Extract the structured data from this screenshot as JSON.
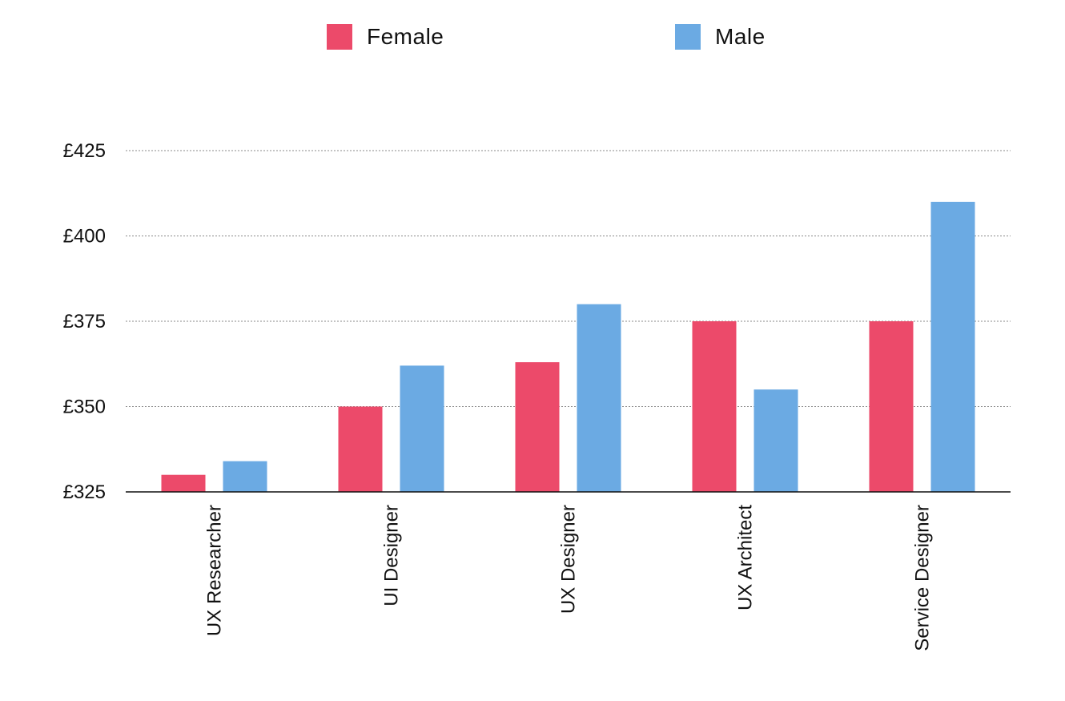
{
  "chart_data": {
    "type": "bar",
    "categories": [
      "UX Researcher",
      "UI Designer",
      "UX Designer",
      "UX Architect",
      "Service Designer"
    ],
    "series": [
      {
        "name": "Female",
        "color": "#EC4A6A",
        "values": [
          330,
          350,
          363,
          375,
          375
        ]
      },
      {
        "name": "Male",
        "color": "#6BAAE3",
        "values": [
          334,
          362,
          380,
          355,
          410
        ]
      }
    ],
    "title": "",
    "xlabel": "",
    "ylabel": "",
    "ylim": [
      325,
      425
    ],
    "yticks": [
      325,
      350,
      375,
      400,
      425
    ],
    "ytick_labels": [
      "£325",
      "£350",
      "£375",
      "£400",
      "£425"
    ],
    "grid": true,
    "legend_position": "top-center"
  }
}
